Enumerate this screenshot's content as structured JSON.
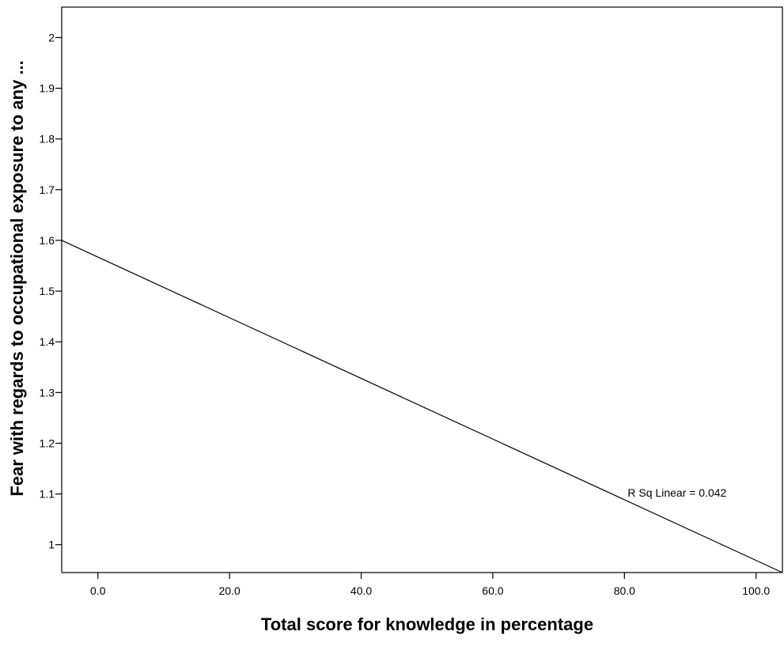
{
  "chart_data": {
    "type": "line",
    "xlabel": "Total score for knowledge in percentage",
    "ylabel": "Fear with regards to occupational exposure to any ...",
    "xlim": [
      -5.5,
      104
    ],
    "ylim": [
      0.945,
      2.06
    ],
    "x_ticks": [
      0,
      20,
      40,
      60,
      80,
      100
    ],
    "x_tick_labels": [
      "0.0",
      "20.0",
      "40.0",
      "60.0",
      "80.0",
      "100.0"
    ],
    "y_ticks": [
      1,
      1.1,
      1.2,
      1.3,
      1.4,
      1.5,
      1.6,
      1.7,
      1.8,
      1.9,
      2
    ],
    "y_tick_labels": [
      "1",
      "1.1",
      "1.2",
      "1.3",
      "1.4",
      "1.5",
      "1.6",
      "1.7",
      "1.8",
      "1.9",
      "2"
    ],
    "series": [
      {
        "type": "fit_line",
        "x": [
          -5.5,
          104
        ],
        "y": [
          1.6,
          0.945
        ]
      }
    ],
    "annotation": {
      "text": "R Sq Linear = 0.042",
      "x": 88,
      "y": 1.095
    },
    "grid": false
  }
}
